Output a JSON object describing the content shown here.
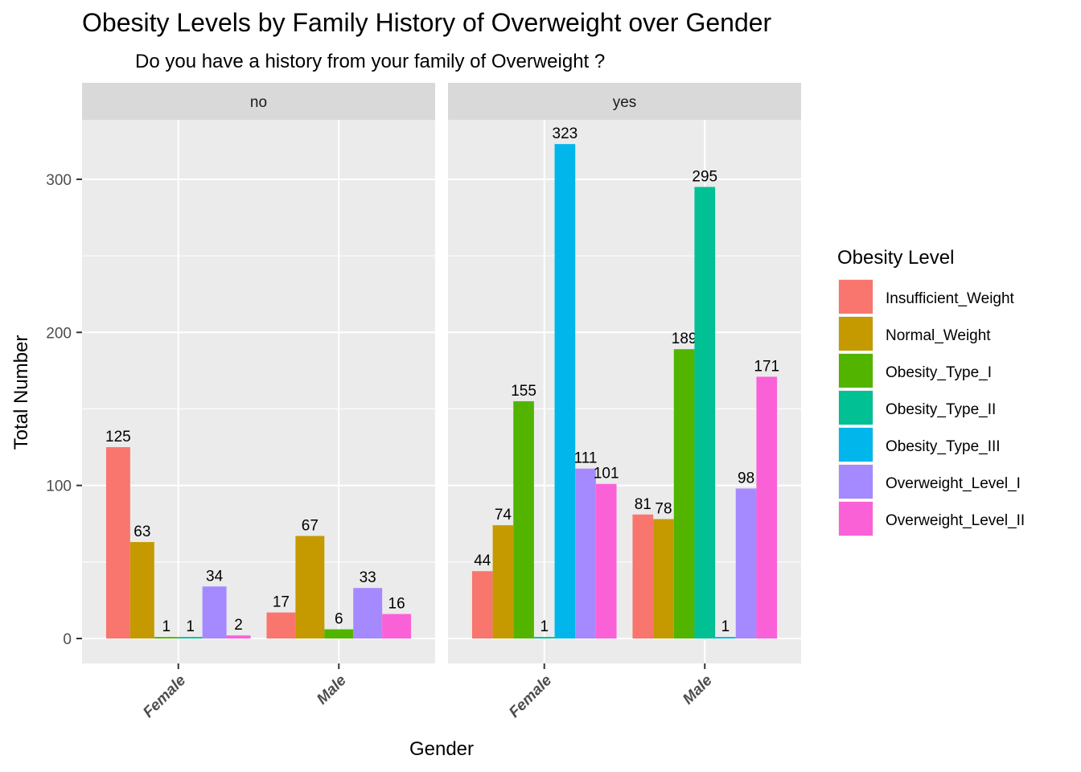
{
  "chart_data": {
    "type": "bar",
    "title": "Obesity Levels by Family History of Overweight over Gender",
    "subtitle": "Do you have a history from your family of Overweight ?",
    "xlabel": "Gender",
    "ylabel": "Total Number",
    "ylim": [
      0,
      340
    ],
    "yticks": [
      "0",
      "100",
      "200",
      "300"
    ],
    "grid": true,
    "categories": [
      "Female",
      "Male"
    ],
    "facets": [
      {
        "label": "no",
        "series": [
          {
            "name": "Insufficient_Weight",
            "values": [
              125,
              17
            ]
          },
          {
            "name": "Normal_Weight",
            "values": [
              63,
              67
            ]
          },
          {
            "name": "Obesity_Type_I",
            "values": [
              1,
              6
            ]
          },
          {
            "name": "Obesity_Type_II",
            "values": [
              1,
              null
            ]
          },
          {
            "name": "Obesity_Type_III",
            "values": [
              null,
              null
            ]
          },
          {
            "name": "Overweight_Level_I",
            "values": [
              34,
              33
            ]
          },
          {
            "name": "Overweight_Level_II",
            "values": [
              2,
              16
            ]
          }
        ]
      },
      {
        "label": "yes",
        "series": [
          {
            "name": "Insufficient_Weight",
            "values": [
              44,
              81
            ]
          },
          {
            "name": "Normal_Weight",
            "values": [
              74,
              78
            ]
          },
          {
            "name": "Obesity_Type_I",
            "values": [
              155,
              189
            ]
          },
          {
            "name": "Obesity_Type_II",
            "values": [
              1,
              295
            ]
          },
          {
            "name": "Obesity_Type_III",
            "values": [
              323,
              1
            ]
          },
          {
            "name": "Overweight_Level_I",
            "values": [
              111,
              98
            ]
          },
          {
            "name": "Overweight_Level_II",
            "values": [
              101,
              171
            ]
          }
        ]
      }
    ],
    "legend": {
      "title": "Obesity Level",
      "placement": "right",
      "items": [
        {
          "name": "Insufficient_Weight",
          "color": "#F8766D"
        },
        {
          "name": "Normal_Weight",
          "color": "#C49A00"
        },
        {
          "name": "Obesity_Type_I",
          "color": "#53B400"
        },
        {
          "name": "Obesity_Type_II",
          "color": "#00C094"
        },
        {
          "name": "Obesity_Type_III",
          "color": "#00B6EB"
        },
        {
          "name": "Overweight_Level_I",
          "color": "#A58AFF"
        },
        {
          "name": "Overweight_Level_II",
          "color": "#FB61D7"
        }
      ]
    }
  }
}
